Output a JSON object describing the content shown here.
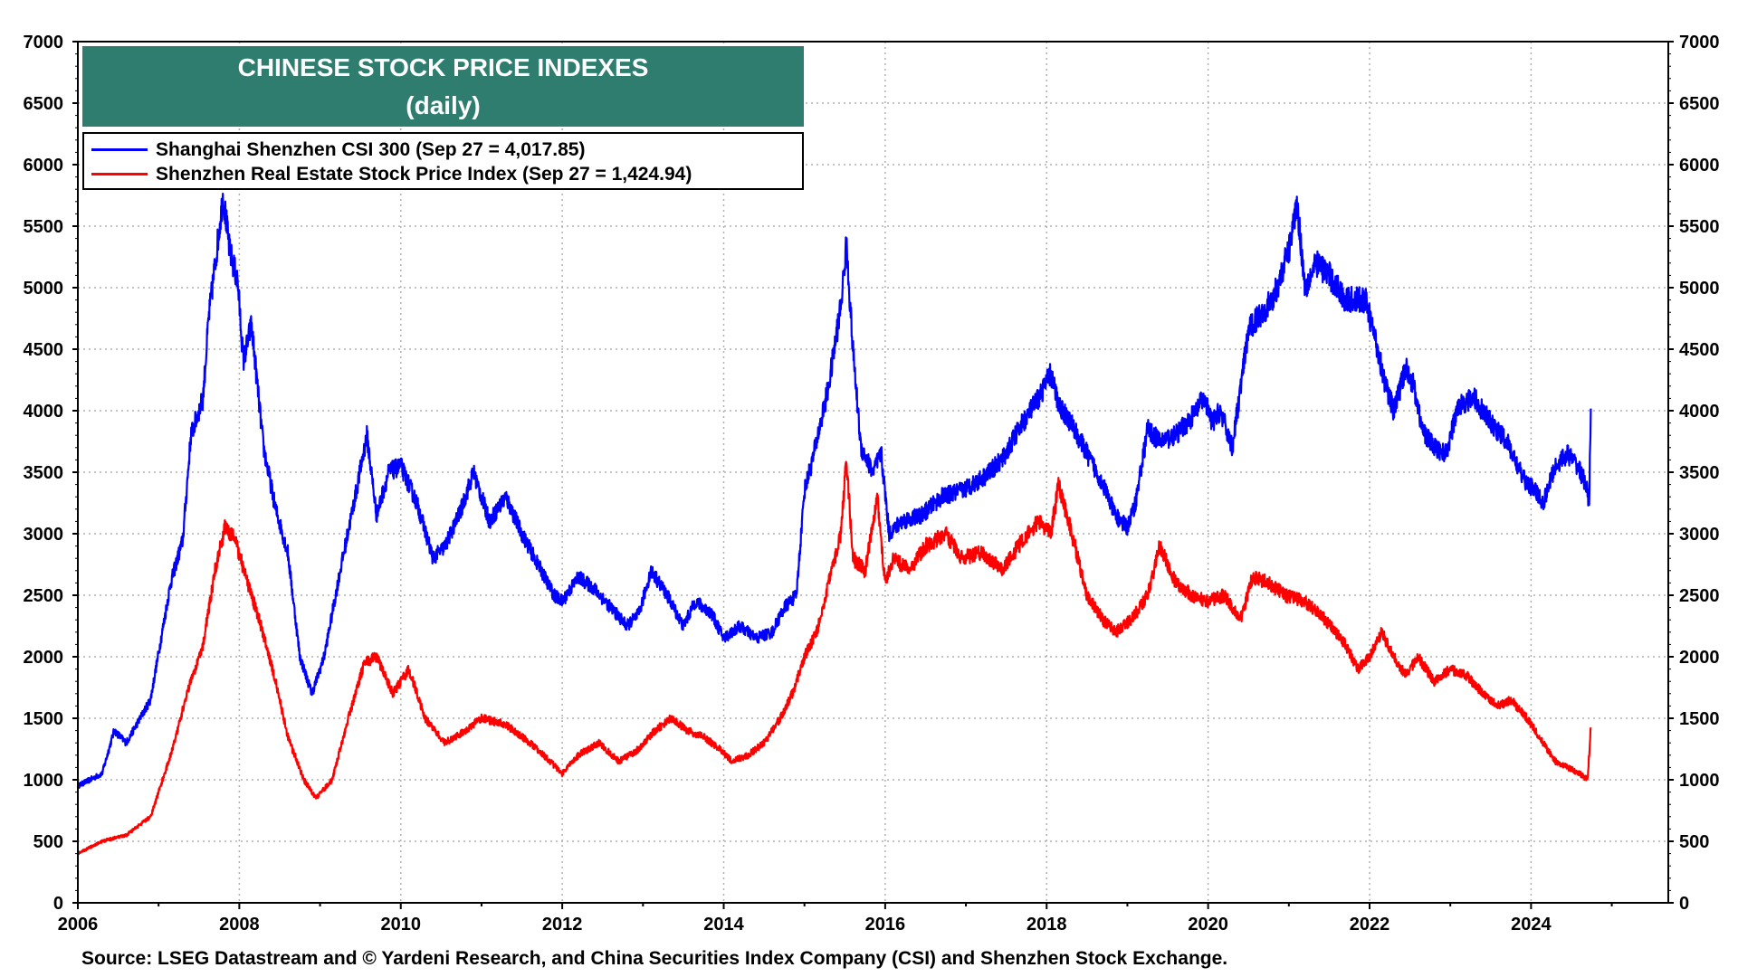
{
  "chart_data": {
    "type": "line",
    "title": "CHINESE STOCK PRICE INDEXES",
    "subtitle": "(daily)",
    "xlabel": "",
    "ylabel": "",
    "x_ticks": [
      "2006",
      "2008",
      "2010",
      "2012",
      "2014",
      "2016",
      "2018",
      "2020",
      "2022",
      "2024"
    ],
    "y_ticks": [
      "0",
      "500",
      "1000",
      "1500",
      "2000",
      "2500",
      "3000",
      "3500",
      "4000",
      "4500",
      "5000",
      "5500",
      "6000",
      "6500",
      "7000"
    ],
    "xlim": [
      2006.0,
      2025.7
    ],
    "ylim": [
      0,
      7000
    ],
    "grid": true,
    "dual_y_axis_same_scale": true,
    "legend_position": "top-left",
    "series": [
      {
        "name": "Shanghai Shenzhen CSI 300 (Sep 27 = 4,017.85)",
        "color": "#0000ff",
        "x": [
          2006.0,
          2006.3,
          2006.45,
          2006.6,
          2006.9,
          2007.15,
          2007.3,
          2007.4,
          2007.55,
          2007.62,
          2007.72,
          2007.8,
          2007.88,
          2007.98,
          2008.05,
          2008.15,
          2008.3,
          2008.45,
          2008.6,
          2008.75,
          2008.9,
          2009.05,
          2009.25,
          2009.45,
          2009.58,
          2009.7,
          2009.85,
          2010.0,
          2010.2,
          2010.4,
          2010.55,
          2010.75,
          2010.9,
          2011.1,
          2011.3,
          2011.5,
          2011.7,
          2011.9,
          2012.0,
          2012.2,
          2012.4,
          2012.6,
          2012.8,
          2012.95,
          2013.1,
          2013.3,
          2013.5,
          2013.65,
          2013.85,
          2014.0,
          2014.2,
          2014.4,
          2014.6,
          2014.75,
          2014.9,
          2015.0,
          2015.1,
          2015.3,
          2015.45,
          2015.52,
          2015.6,
          2015.7,
          2015.85,
          2015.95,
          2016.05,
          2016.2,
          2016.45,
          2016.7,
          2016.95,
          2017.2,
          2017.45,
          2017.7,
          2017.9,
          2018.05,
          2018.15,
          2018.3,
          2018.5,
          2018.7,
          2018.85,
          2019.0,
          2019.1,
          2019.25,
          2019.4,
          2019.6,
          2019.8,
          2019.95,
          2020.05,
          2020.15,
          2020.3,
          2020.5,
          2020.6,
          2020.8,
          2021.0,
          2021.1,
          2021.2,
          2021.35,
          2021.5,
          2021.7,
          2021.95,
          2022.1,
          2022.2,
          2022.3,
          2022.45,
          2022.55,
          2022.65,
          2022.8,
          2022.95,
          2023.1,
          2023.3,
          2023.5,
          2023.7,
          2023.9,
          2024.05,
          2024.15,
          2024.3,
          2024.45,
          2024.58,
          2024.68,
          2024.72,
          2024.74
        ],
        "values": [
          950,
          1050,
          1400,
          1300,
          1650,
          2600,
          2950,
          3800,
          4100,
          4750,
          5300,
          5750,
          5300,
          5050,
          4400,
          4700,
          3700,
          3200,
          2850,
          2000,
          1700,
          2000,
          2700,
          3350,
          3800,
          3150,
          3500,
          3550,
          3250,
          2800,
          2900,
          3200,
          3500,
          3100,
          3300,
          3000,
          2750,
          2500,
          2450,
          2650,
          2550,
          2400,
          2250,
          2350,
          2700,
          2500,
          2250,
          2450,
          2350,
          2150,
          2250,
          2150,
          2200,
          2400,
          2500,
          3350,
          3600,
          4200,
          4850,
          5350,
          4500,
          3700,
          3500,
          3650,
          3000,
          3100,
          3150,
          3300,
          3350,
          3450,
          3600,
          3900,
          4100,
          4300,
          4050,
          3900,
          3650,
          3400,
          3150,
          3050,
          3250,
          3850,
          3750,
          3800,
          3950,
          4100,
          3900,
          4000,
          3700,
          4650,
          4750,
          4900,
          5300,
          5700,
          5000,
          5200,
          5100,
          4900,
          4900,
          4500,
          4200,
          4000,
          4350,
          4200,
          3850,
          3700,
          3650,
          4050,
          4100,
          3900,
          3750,
          3450,
          3350,
          3250,
          3550,
          3650,
          3550,
          3400,
          3250,
          4018
        ]
      },
      {
        "name": "Shenzhen Real Estate Stock Price Index (Sep 27 = 1,424.94)",
        "color": "#ff0000",
        "x": [
          2006.0,
          2006.3,
          2006.6,
          2006.9,
          2007.15,
          2007.35,
          2007.55,
          2007.7,
          2007.82,
          2007.95,
          2008.1,
          2008.25,
          2008.45,
          2008.6,
          2008.8,
          2008.95,
          2009.15,
          2009.35,
          2009.55,
          2009.7,
          2009.9,
          2010.1,
          2010.3,
          2010.55,
          2010.8,
          2011.0,
          2011.3,
          2011.6,
          2011.85,
          2012.0,
          2012.2,
          2012.45,
          2012.7,
          2012.95,
          2013.15,
          2013.35,
          2013.55,
          2013.75,
          2013.95,
          2014.1,
          2014.3,
          2014.5,
          2014.7,
          2014.85,
          2015.0,
          2015.15,
          2015.3,
          2015.45,
          2015.52,
          2015.6,
          2015.75,
          2015.9,
          2016.0,
          2016.1,
          2016.3,
          2016.5,
          2016.75,
          2016.95,
          2017.2,
          2017.45,
          2017.7,
          2017.9,
          2018.05,
          2018.15,
          2018.35,
          2018.5,
          2018.7,
          2018.85,
          2019.05,
          2019.25,
          2019.4,
          2019.6,
          2019.8,
          2020.0,
          2020.2,
          2020.4,
          2020.55,
          2020.75,
          2020.95,
          2021.2,
          2021.45,
          2021.7,
          2021.85,
          2022.0,
          2022.15,
          2022.3,
          2022.45,
          2022.6,
          2022.8,
          2023.0,
          2023.2,
          2023.4,
          2023.6,
          2023.75,
          2023.95,
          2024.1,
          2024.3,
          2024.45,
          2024.6,
          2024.7,
          2024.74
        ],
        "values": [
          400,
          500,
          550,
          700,
          1200,
          1700,
          2100,
          2700,
          3050,
          2950,
          2600,
          2300,
          1800,
          1350,
          1000,
          850,
          1000,
          1500,
          1950,
          2000,
          1700,
          1900,
          1500,
          1300,
          1400,
          1500,
          1450,
          1300,
          1150,
          1050,
          1200,
          1300,
          1150,
          1250,
          1400,
          1500,
          1400,
          1350,
          1250,
          1150,
          1200,
          1300,
          1500,
          1700,
          2000,
          2200,
          2600,
          3000,
          3600,
          2800,
          2700,
          3300,
          2600,
          2800,
          2700,
          2900,
          3000,
          2800,
          2850,
          2700,
          2950,
          3100,
          3000,
          3400,
          2900,
          2500,
          2300,
          2200,
          2300,
          2500,
          2900,
          2600,
          2500,
          2450,
          2500,
          2300,
          2650,
          2600,
          2500,
          2450,
          2300,
          2100,
          1900,
          2000,
          2200,
          2000,
          1850,
          2000,
          1800,
          1900,
          1850,
          1700,
          1600,
          1650,
          1500,
          1350,
          1150,
          1100,
          1050,
          1000,
          1425
        ]
      }
    ],
    "source": "Source: LSEG Datastream and © Yardeni Research, and China Securities Index Company (CSI) and Shenzhen Stock Exchange."
  }
}
